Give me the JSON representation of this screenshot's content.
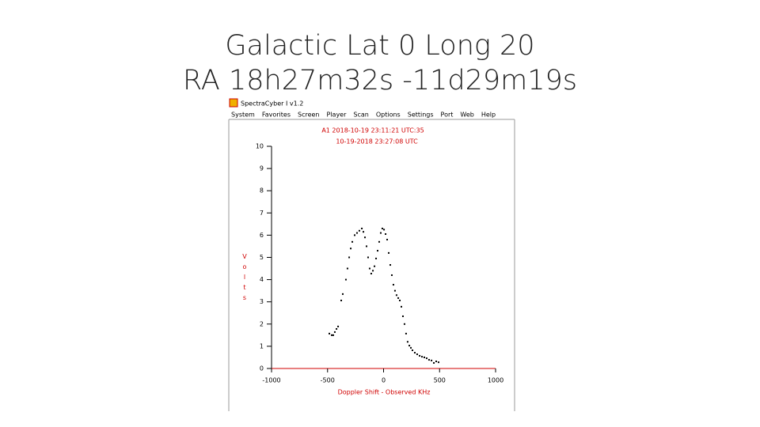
{
  "slide": {
    "title_lines": [
      "Galactic Lat 0 Long 20",
      "RA 18h27m32s -11d29m19s"
    ]
  },
  "window": {
    "title": "SpectraCyber I v1.2",
    "menu": [
      "System",
      "Favorites",
      "Screen",
      "Player",
      "Scan",
      "Options",
      "Settings",
      "Port",
      "Web",
      "Help"
    ]
  },
  "chart_data": {
    "type": "scatter",
    "title_lines": [
      "A1 2018-10-19 23:11:21 UTC:35",
      "10-19-2018 23:27:08 UTC"
    ],
    "x_label": "Doppler Shift - Observed KHz",
    "y_label": "Volts",
    "xlim": [
      -1000,
      1000
    ],
    "xticks": [
      -1000,
      -500,
      0,
      500,
      1000
    ],
    "ylim": [
      0,
      10
    ],
    "yticks": [
      0,
      1,
      2,
      3,
      4,
      5,
      6,
      7,
      8,
      9,
      10
    ],
    "color": "#000000",
    "axis_color": "#d00000",
    "x": [
      -484,
      -463,
      -449,
      -435,
      -420,
      -406,
      -378,
      -364,
      -336,
      -322,
      -307,
      -293,
      -279,
      -258,
      -237,
      -216,
      -194,
      -180,
      -166,
      -152,
      -138,
      -124,
      -110,
      -95,
      -81,
      -67,
      -53,
      -39,
      -25,
      -11,
      4,
      18,
      32,
      46,
      60,
      74,
      88,
      102,
      116,
      131,
      145,
      159,
      173,
      187,
      201,
      215,
      230,
      244,
      258,
      279,
      300,
      322,
      343,
      364,
      385,
      406,
      428,
      449,
      470,
      491
    ],
    "values": [
      1.57,
      1.5,
      1.5,
      1.64,
      1.78,
      1.89,
      3.06,
      3.35,
      4.0,
      4.5,
      5.0,
      5.4,
      5.7,
      6.0,
      6.1,
      6.2,
      6.3,
      6.15,
      5.9,
      5.5,
      5.0,
      4.5,
      4.27,
      4.4,
      4.6,
      4.95,
      5.3,
      5.7,
      6.1,
      6.3,
      6.25,
      6.05,
      5.8,
      5.2,
      4.66,
      4.2,
      3.77,
      3.5,
      3.3,
      3.17,
      3.06,
      2.78,
      2.35,
      2.0,
      1.57,
      1.2,
      1.03,
      0.93,
      0.82,
      0.71,
      0.64,
      0.57,
      0.53,
      0.5,
      0.46,
      0.39,
      0.36,
      0.25,
      0.32,
      0.28
    ]
  }
}
